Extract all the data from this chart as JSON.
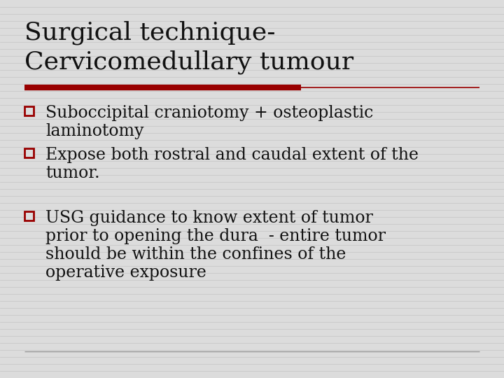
{
  "title_line1": "Surgical technique-",
  "title_line2": "Cervicomedullary tumour",
  "title_fontsize": 26,
  "title_color": "#111111",
  "title_font": "serif",
  "red_line_color": "#990000",
  "gray_line_color": "#999999",
  "background_color": "#dcdcdc",
  "stripe_color": "#c8c8c8",
  "bullet_color": "#990000",
  "bullet_text_color": "#111111",
  "bullet_fontsize": 17,
  "bullet_font": "serif",
  "bullets": [
    [
      "Suboccipital craniotomy + osteoplastic",
      "laminotomy"
    ],
    [
      "Expose both rostral and caudal extent of the",
      "tumor."
    ],
    [
      "USG guidance to know extent of tumor",
      "prior to opening the dura  - entire tumor",
      "should be within the confines of the",
      "operative exposure"
    ]
  ]
}
